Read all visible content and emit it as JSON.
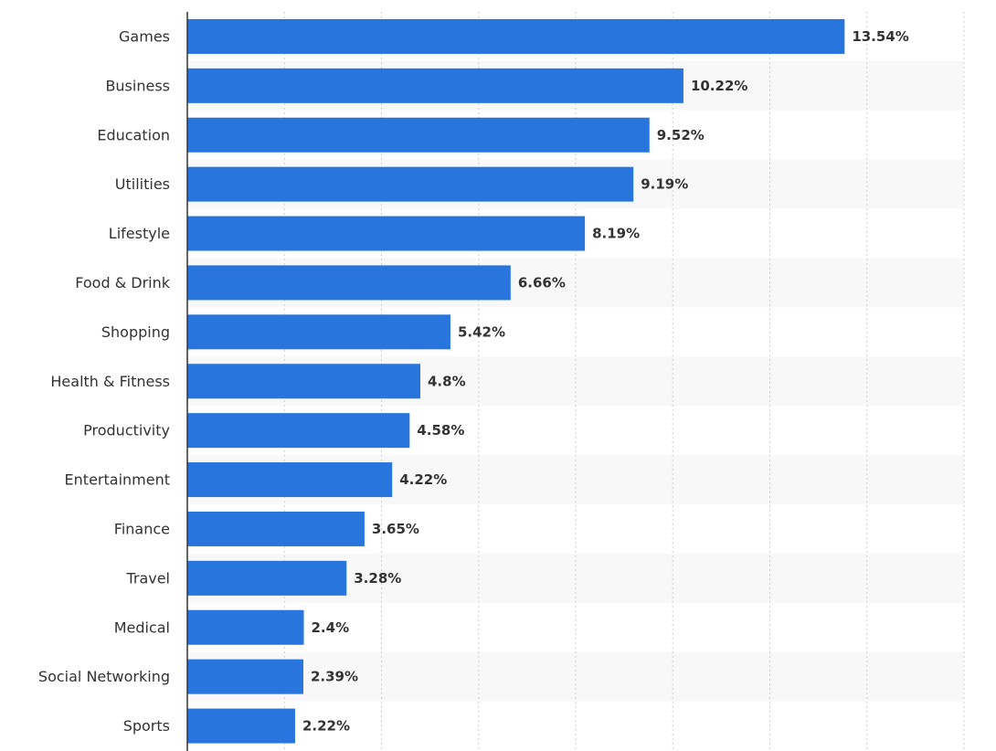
{
  "chart_data": {
    "type": "bar",
    "orientation": "horizontal",
    "categories": [
      "Games",
      "Business",
      "Education",
      "Utilities",
      "Lifestyle",
      "Food & Drink",
      "Shopping",
      "Health & Fitness",
      "Productivity",
      "Entertainment",
      "Finance",
      "Travel",
      "Medical",
      "Social Networking",
      "Sports"
    ],
    "values": [
      13.54,
      10.22,
      9.52,
      9.19,
      8.19,
      6.66,
      5.42,
      4.8,
      4.58,
      4.22,
      3.65,
      3.28,
      2.4,
      2.39,
      2.22
    ],
    "value_labels": [
      "13.54%",
      "10.22%",
      "9.52%",
      "9.19%",
      "8.19%",
      "6.66%",
      "5.42%",
      "4.8%",
      "4.58%",
      "4.22%",
      "3.65%",
      "3.28%",
      "2.4%",
      "2.39%",
      "2.22%"
    ],
    "xlim": [
      0,
      16
    ],
    "grid": true,
    "colors": {
      "bar": "#2876dd",
      "band": "#f8f8f8"
    }
  }
}
